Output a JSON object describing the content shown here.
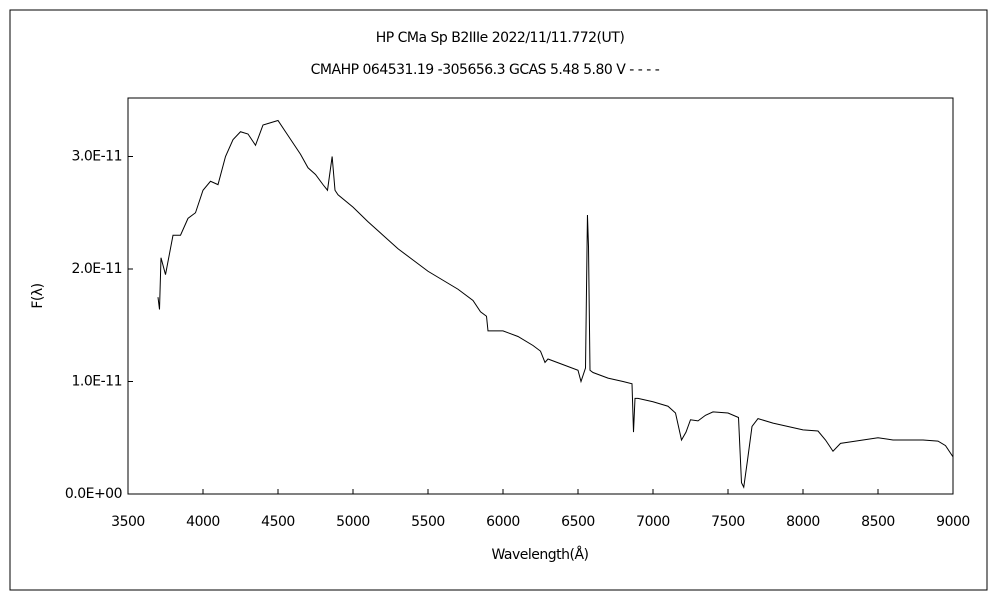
{
  "chart_data": {
    "type": "line",
    "title": "HP CMa    Sp B2IIIe    2022/11/11.772(UT)",
    "subtitle": "CMAHP 064531.19 -305656.3 GCAS 5.48 5.80 V - - - -",
    "x_label": "Wavelength(Å)",
    "y_label": "F(λ)",
    "xlim": [
      3500,
      9000
    ],
    "xticks": [
      3500,
      4000,
      4500,
      5000,
      5500,
      6000,
      6500,
      7000,
      7500,
      8000,
      8500,
      9000
    ],
    "ylim": [
      0,
      3.52e-11
    ],
    "yticks": [
      {
        "value": 0,
        "label": "0.0E+00"
      },
      {
        "value": 1e-11,
        "label": "1.0E-11"
      },
      {
        "value": 2e-11,
        "label": "2.0E-11"
      },
      {
        "value": 3e-11,
        "label": "3.0E-11"
      }
    ],
    "color": "#000000",
    "x": [
      3700,
      3710,
      3720,
      3750,
      3800,
      3850,
      3900,
      3950,
      4000,
      4050,
      4100,
      4150,
      4200,
      4250,
      4300,
      4350,
      4400,
      4450,
      4500,
      4550,
      4600,
      4650,
      4700,
      4750,
      4800,
      4830,
      4861,
      4880,
      4900,
      5000,
      5100,
      5200,
      5300,
      5400,
      5500,
      5600,
      5700,
      5800,
      5850,
      5890,
      5900,
      5950,
      6000,
      6100,
      6200,
      6250,
      6280,
      6300,
      6400,
      6500,
      6520,
      6550,
      6563,
      6570,
      6580,
      6600,
      6700,
      6800,
      6860,
      6870,
      6880,
      6900,
      7000,
      7050,
      7100,
      7150,
      7190,
      7220,
      7250,
      7300,
      7350,
      7400,
      7500,
      7570,
      7590,
      7605,
      7630,
      7660,
      7700,
      7800,
      7900,
      8000,
      8100,
      8150,
      8200,
      8250,
      8300,
      8400,
      8500,
      8600,
      8700,
      8800,
      8900,
      8950,
      9000
    ],
    "values": [
      1.75e-11,
      1.64e-11,
      2.1e-11,
      1.95e-11,
      2.3e-11,
      2.3e-11,
      2.45e-11,
      2.5e-11,
      2.7e-11,
      2.78e-11,
      2.75e-11,
      3e-11,
      3.15e-11,
      3.22e-11,
      3.2e-11,
      3.1e-11,
      3.28e-11,
      3.3e-11,
      3.32e-11,
      3.22e-11,
      3.12e-11,
      3.02e-11,
      2.9e-11,
      2.84e-11,
      2.75e-11,
      2.7e-11,
      3e-11,
      2.7e-11,
      2.66e-11,
      2.55e-11,
      2.42e-11,
      2.3e-11,
      2.18e-11,
      2.08e-11,
      1.98e-11,
      1.9e-11,
      1.82e-11,
      1.72e-11,
      1.62e-11,
      1.58e-11,
      1.45e-11,
      1.45e-11,
      1.45e-11,
      1.4e-11,
      1.32e-11,
      1.27e-11,
      1.17e-11,
      1.2e-11,
      1.15e-11,
      1.1e-11,
      1e-11,
      1.12e-11,
      2.48e-11,
      2.2e-11,
      1.1e-11,
      1.08e-11,
      1.03e-11,
      1e-11,
      9.8e-12,
      5.5e-12,
      8.5e-12,
      8.5e-12,
      8.2e-12,
      8e-12,
      7.8e-12,
      7.2e-12,
      4.8e-12,
      5.5e-12,
      6.6e-12,
      6.5e-12,
      7e-12,
      7.3e-12,
      7.2e-12,
      6.8e-12,
      1e-12,
      6e-13,
      3e-12,
      6e-12,
      6.7e-12,
      6.3e-12,
      6e-12,
      5.7e-12,
      5.6e-12,
      4.8e-12,
      3.8e-12,
      4.5e-12,
      4.6e-12,
      4.8e-12,
      5e-12,
      4.8e-12,
      4.8e-12,
      4.8e-12,
      4.7e-12,
      4.3e-12,
      3.3e-12
    ]
  }
}
